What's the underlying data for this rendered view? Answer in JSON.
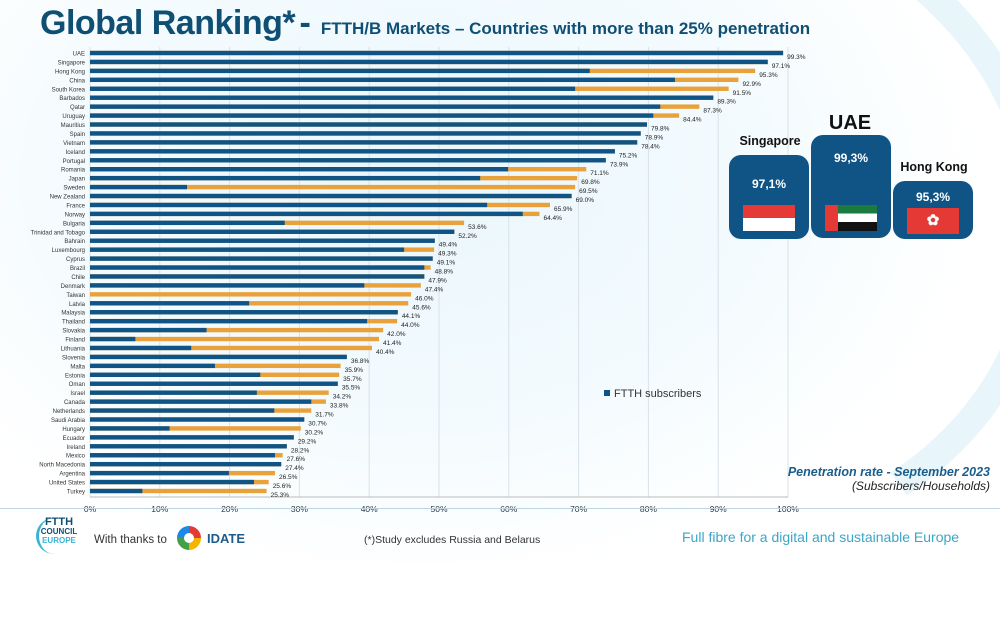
{
  "title": {
    "main": "Global Ranking*",
    "dash": "-",
    "subtitle": "FTTH/B Markets – Countries with more than 25% penetration"
  },
  "chart_data": {
    "type": "bar",
    "orientation": "horizontal",
    "stacked": true,
    "xlim": [
      0,
      100
    ],
    "xticks": [
      "0%",
      "10%",
      "20%",
      "30%",
      "40%",
      "50%",
      "60%",
      "70%",
      "80%",
      "90%",
      "100%"
    ],
    "grid": true,
    "legend_position": "right-middle",
    "colors": {
      "ftth": "#0f5485",
      "fttb": "#e9a23b"
    },
    "categories": [
      "UAE",
      "Singapore",
      "Hong Kong",
      "China",
      "South Korea",
      "Barbados",
      "Qatar",
      "Uruguay",
      "Mauritius",
      "Spain",
      "Vietnam",
      "Iceland",
      "Portugal",
      "Romania",
      "Japan",
      "Sweden",
      "New Zealand",
      "France",
      "Norway",
      "Bulgaria",
      "Trinidad and Tobago",
      "Bahrain",
      "Luxembourg",
      "Cyprus",
      "Brazil",
      "Chile",
      "Denmark",
      "Taiwan",
      "Latvia",
      "Malaysia",
      "Thailand",
      "Slovakia",
      "Finland",
      "Lithuania",
      "Slovenia",
      "Malta",
      "Estonia",
      "Oman",
      "Israel",
      "Canada",
      "Netherlands",
      "Saudi Arabia",
      "Hungary",
      "Ecuador",
      "Ireland",
      "Mexico",
      "North Macedonia",
      "Argentina",
      "United States",
      "Turkey"
    ],
    "totals": [
      99.3,
      97.1,
      95.3,
      92.9,
      91.5,
      89.3,
      87.3,
      84.4,
      79.8,
      78.9,
      78.4,
      75.2,
      73.9,
      71.1,
      69.8,
      69.5,
      69.0,
      65.9,
      64.4,
      53.6,
      52.2,
      49.4,
      49.3,
      49.1,
      48.8,
      47.9,
      47.4,
      46.0,
      45.6,
      44.1,
      44.0,
      42.0,
      41.4,
      40.4,
      36.8,
      35.9,
      35.7,
      35.5,
      34.2,
      33.8,
      31.7,
      30.7,
      30.2,
      29.2,
      28.2,
      27.6,
      27.4,
      26.5,
      25.6,
      25.3
    ],
    "labels": [
      "99.3%",
      "97.1%",
      "95.3%",
      "92.9%",
      "91.5%",
      "89.3%",
      "87.3%",
      "84.4%",
      "79.8%",
      "78.9%",
      "78.4%",
      "75.2%",
      "73.9%",
      "71.1%",
      "69.8%",
      "69.5%",
      "69.0%",
      "65.9%",
      "64.4%",
      "53.6%",
      "52.2%",
      "49.4%",
      "49.3%",
      "49.1%",
      "48.8%",
      "47.9%",
      "47.4%",
      "46.0%",
      "45.6%",
      "44.1%",
      "44.0%",
      "42.0%",
      "41.4%",
      "40.4%",
      "36.8%",
      "35.9%",
      "35.7%",
      "35.5%",
      "34.2%",
      "33.8%",
      "31.7%",
      "30.7%",
      "30.2%",
      "29.2%",
      "28.2%",
      "27.6%",
      "27.4%",
      "26.5%",
      "25.6%",
      "25.3%"
    ],
    "series": [
      {
        "name": "FTTH subscribers",
        "values": [
          99.3,
          97.1,
          71.6,
          83.8,
          69.5,
          89.3,
          81.7,
          80.7,
          79.8,
          78.9,
          78.4,
          75.2,
          73.9,
          59.9,
          55.9,
          13.9,
          69.0,
          56.9,
          62.0,
          27.9,
          52.2,
          49.4,
          45.0,
          49.1,
          47.9,
          47.9,
          39.3,
          0,
          22.8,
          44.1,
          39.7,
          16.7,
          6.5,
          14.5,
          36.8,
          17.9,
          24.4,
          35.5,
          23.9,
          31.7,
          26.4,
          30.7,
          11.4,
          29.2,
          28.2,
          26.5,
          27.4,
          19.9,
          23.5,
          7.5
        ]
      }
    ]
  },
  "highlights": [
    {
      "country": "Singapore",
      "value": "97,1%",
      "flag": "singapore-flag"
    },
    {
      "country": "UAE",
      "value": "99,3%",
      "flag": "uae-flag"
    },
    {
      "country": "Hong Kong",
      "value": "95,3%",
      "flag": "hong-kong-flag"
    }
  ],
  "note": {
    "title": "Penetration rate - September 2023",
    "subtitle": "(Subscribers/Households)"
  },
  "footer": {
    "logo_text": "FTTH COUNCIL EUROPE",
    "thanks": "With thanks to",
    "partner": "IDATE",
    "disclaimer": "(*)Study excludes Russia and Belarus",
    "slogan": "Full fibre for a digital and sustainable Europe"
  }
}
